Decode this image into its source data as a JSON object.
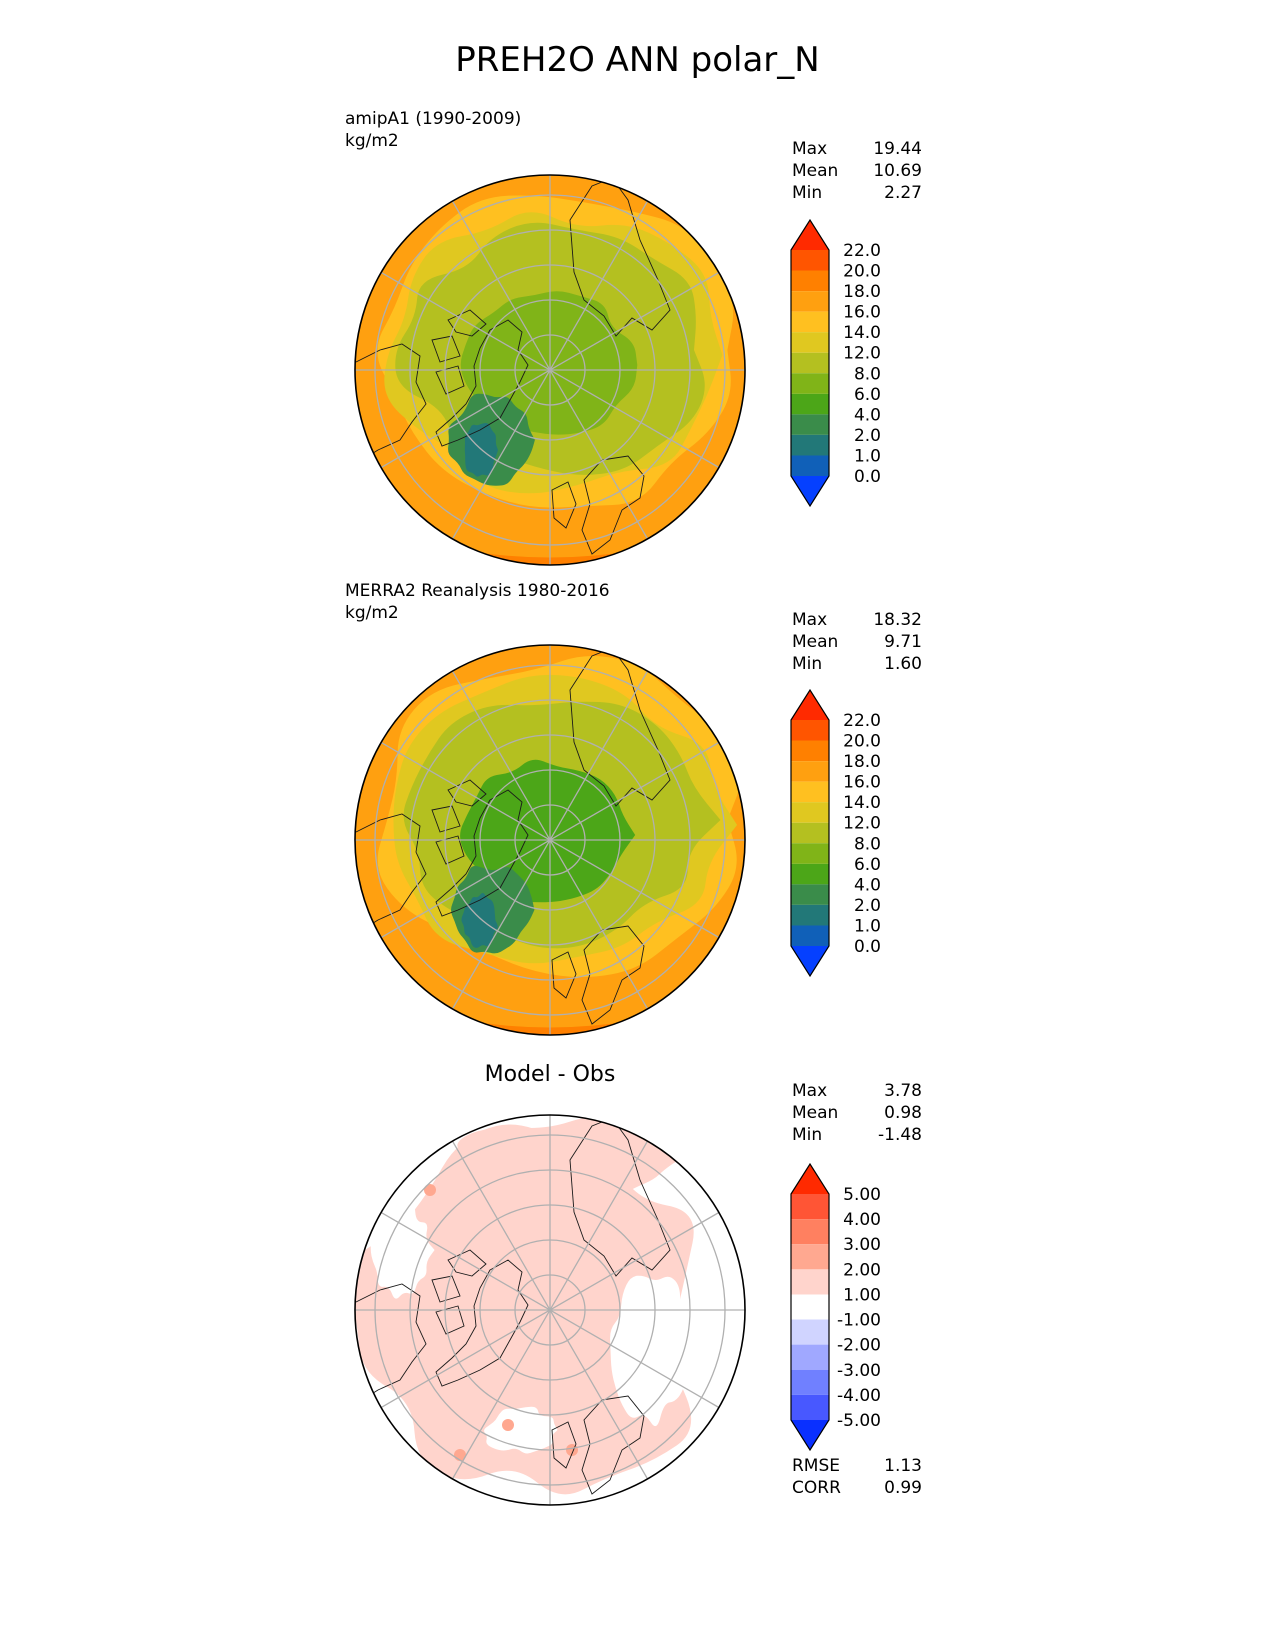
{
  "figure": {
    "title": "PREH2O ANN polar_N"
  },
  "panels": [
    {
      "id": "model",
      "title_line1": "amipA1 (1990-2009)",
      "title_line2": "kg/m2",
      "stats": [
        {
          "label": "Max",
          "value": "19.44"
        },
        {
          "label": "Mean",
          "value": "10.69"
        },
        {
          "label": "Min",
          "value": "2.27"
        }
      ]
    },
    {
      "id": "obs",
      "title_line1": "MERRA2 Reanalysis 1980-2016",
      "title_line2": "kg/m2",
      "stats": [
        {
          "label": "Max",
          "value": "18.32"
        },
        {
          "label": "Mean",
          "value": "9.71"
        },
        {
          "label": "Min",
          "value": "1.60"
        }
      ]
    },
    {
      "id": "diff",
      "center_title": "Model - Obs",
      "stats": [
        {
          "label": "Max",
          "value": "3.78"
        },
        {
          "label": "Mean",
          "value": "0.98"
        },
        {
          "label": "Min",
          "value": "-1.48"
        }
      ],
      "metrics": [
        {
          "label": "RMSE",
          "value": "1.13"
        },
        {
          "label": "CORR",
          "value": "0.99"
        }
      ]
    }
  ],
  "chart_data": [
    {
      "type": "heatmap",
      "projection": "north polar stereographic",
      "title": "amipA1 (1990-2009)",
      "units": "kg/m2",
      "colorbar": {
        "levels": [
          "22.0",
          "20.0",
          "18.0",
          "16.0",
          "14.0",
          "12.0",
          "8.0",
          "6.0",
          "4.0",
          "2.0",
          "1.0",
          "0.0"
        ],
        "colors": [
          "#ff2a00",
          "#ff5500",
          "#ff8000",
          "#ffa010",
          "#ffc020",
          "#e0c820",
          "#b4c020",
          "#80b418",
          "#4ca618",
          "#3a8c4a",
          "#227878",
          "#1060b8",
          "#0540ff"
        ]
      },
      "stats": {
        "max": 19.44,
        "mean": 10.69,
        "min": 2.27
      }
    },
    {
      "type": "heatmap",
      "projection": "north polar stereographic",
      "title": "MERRA2 Reanalysis 1980-2016",
      "units": "kg/m2",
      "colorbar": {
        "levels": [
          "22.0",
          "20.0",
          "18.0",
          "16.0",
          "14.0",
          "12.0",
          "8.0",
          "6.0",
          "4.0",
          "2.0",
          "1.0",
          "0.0"
        ],
        "colors": [
          "#ff2a00",
          "#ff5500",
          "#ff8000",
          "#ffa010",
          "#ffc020",
          "#e0c820",
          "#b4c020",
          "#80b418",
          "#4ca618",
          "#3a8c4a",
          "#227878",
          "#1060b8",
          "#0540ff"
        ]
      },
      "stats": {
        "max": 18.32,
        "mean": 9.71,
        "min": 1.6
      }
    },
    {
      "type": "heatmap",
      "projection": "north polar stereographic",
      "title": "Model - Obs",
      "colorbar": {
        "levels": [
          "5.00",
          "4.00",
          "3.00",
          "2.00",
          "1.00",
          "-1.00",
          "-2.00",
          "-3.00",
          "-4.00",
          "-5.00"
        ],
        "colors": [
          "#ff2a00",
          "#ff5535",
          "#ff8060",
          "#ffa890",
          "#ffd4cc",
          "#ffffff",
          "#d0d4ff",
          "#a0a8ff",
          "#7080ff",
          "#4858ff",
          "#0a30ff"
        ]
      },
      "stats": {
        "max": 3.78,
        "mean": 0.98,
        "min": -1.48,
        "rmse": 1.13,
        "corr": 0.99
      }
    }
  ]
}
